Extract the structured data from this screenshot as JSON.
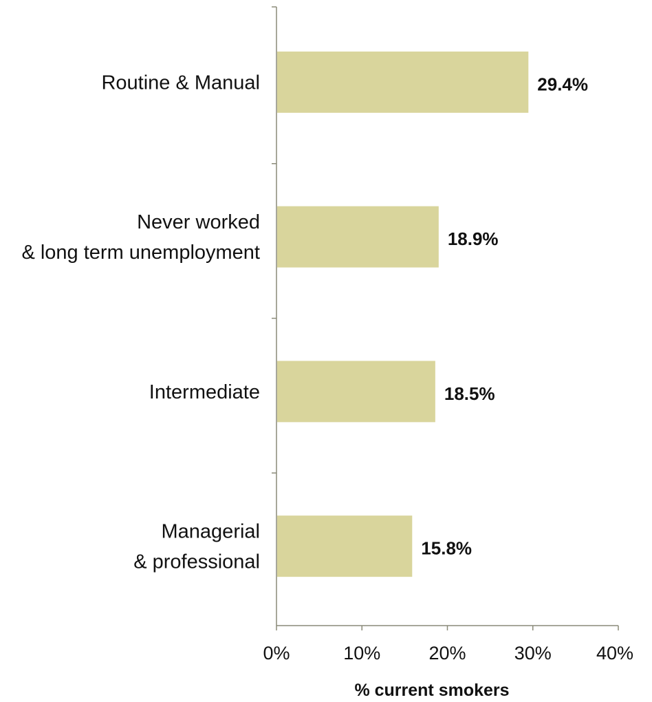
{
  "chart_data": {
    "type": "bar",
    "orientation": "horizontal",
    "categories": [
      "Routine & Manual",
      "Never worked\n& long term unemployment",
      "Intermediate",
      "Managerial\n& professional"
    ],
    "values": [
      29.4,
      18.9,
      18.5,
      15.8
    ],
    "value_labels": [
      "29.4%",
      "18.9%",
      "18.5%",
      "15.8%"
    ],
    "xlabel": "% current smokers",
    "xlim": [
      0,
      40
    ],
    "xticks": [
      0,
      10,
      20,
      30,
      40
    ],
    "xtick_labels": [
      "0%",
      "10%",
      "20%",
      "30%",
      "40%"
    ],
    "bar_color": "#d9d59c",
    "grid": false
  }
}
